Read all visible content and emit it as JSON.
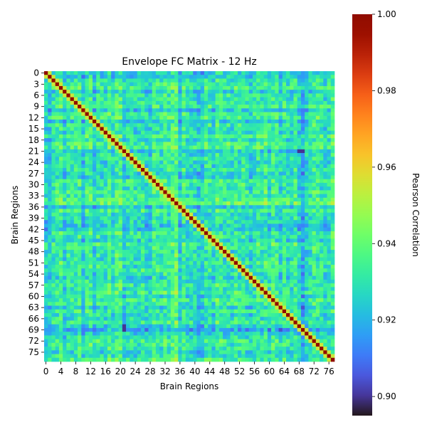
{
  "chart_data": {
    "type": "heatmap",
    "title": "Envelope FC Matrix - 12 Hz",
    "xlabel": "Brain Regions",
    "ylabel": "Brain Regions",
    "n_regions": 78,
    "x_tick_labels": [
      "0",
      "4",
      "8",
      "12",
      "16",
      "20",
      "24",
      "28",
      "32",
      "36",
      "40",
      "44",
      "48",
      "52",
      "56",
      "60",
      "64",
      "68",
      "72",
      "76"
    ],
    "y_tick_labels": [
      "0",
      "3",
      "6",
      "9",
      "12",
      "15",
      "18",
      "21",
      "24",
      "27",
      "30",
      "33",
      "36",
      "39",
      "42",
      "45",
      "48",
      "51",
      "54",
      "57",
      "60",
      "63",
      "66",
      "69",
      "72",
      "75"
    ],
    "colorbar": {
      "label": "Pearson Correlation",
      "vmin": 0.895,
      "vmax": 1.0,
      "tick_values": [
        0.9,
        0.92,
        0.94,
        0.96,
        0.98,
        1.0
      ],
      "tick_labels": [
        "0.90",
        "0.92",
        "0.94",
        "0.96",
        "0.98",
        "1.00"
      ],
      "colormap": "turbo"
    },
    "values": {
      "diagonal": 1.0,
      "typical_off_diagonal": 0.93,
      "range_off_diagonal": [
        0.9,
        0.96
      ],
      "notable_low_cells": [
        [
          21,
          68
        ],
        [
          69,
          21
        ],
        [
          68,
          21
        ],
        [
          21,
          69
        ]
      ],
      "low_correlation_regions": [
        21,
        40,
        41,
        42,
        68,
        69
      ],
      "high_correlation_regions": [
        30,
        31,
        32,
        33,
        34,
        35
      ]
    }
  }
}
